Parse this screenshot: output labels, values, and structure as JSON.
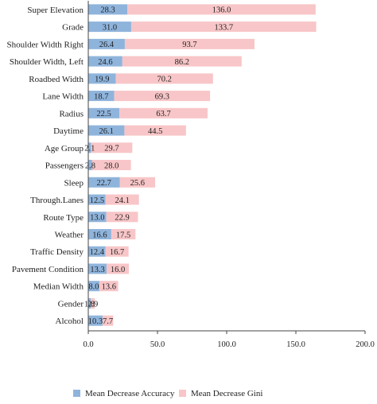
{
  "chart_data": {
    "type": "bar",
    "orientation": "horizontal",
    "stacked": true,
    "categories": [
      "Super Elevation",
      "Grade",
      "Shoulder Width Right",
      "Shoulder Width, Left",
      "Roadbed Width",
      "Lane Width",
      "Radius",
      "Daytime",
      "Age Group",
      "Passengers",
      "Sleep",
      "Through.Lanes",
      "Route Type",
      "Weather",
      "Traffic Density",
      "Pavement Condition",
      "Median Width",
      "Gender",
      "Alcohol"
    ],
    "series": [
      {
        "name": "Mean Decrease Accuracy",
        "color": "#8fb4dc",
        "values": [
          28.3,
          31.0,
          26.4,
          24.6,
          19.9,
          18.7,
          22.5,
          26.1,
          2.1,
          2.8,
          22.7,
          12.5,
          13.0,
          16.6,
          12.4,
          13.3,
          8.0,
          1.8,
          10.3
        ],
        "labels": [
          "28.3",
          "31.0",
          "26.4",
          "24.6",
          "19.9",
          "18.7",
          "22.5",
          "26.1",
          "2.1",
          "2.8",
          "22.7",
          "12.5",
          "13.0",
          "16.6",
          "12.4",
          "13.3",
          "8.0",
          "1.8",
          "10.3"
        ]
      },
      {
        "name": "Mean Decrease Gini",
        "color": "#f8c6c8",
        "values": [
          136.0,
          133.7,
          93.7,
          86.2,
          70.2,
          69.3,
          63.7,
          44.5,
          29.7,
          28.0,
          25.6,
          24.1,
          22.9,
          17.5,
          16.7,
          16.0,
          13.6,
          2.9,
          7.7
        ],
        "labels": [
          "136.0",
          "133.7",
          "93.7",
          "86.2",
          "70.2",
          "69.3",
          "63.7",
          "44.5",
          "29.7",
          "28.0",
          "25.6",
          "24.1",
          "22.9",
          "17.5",
          "16.7",
          "16.0",
          "13.6",
          "2.9",
          "7.7"
        ]
      }
    ],
    "xlim": [
      0,
      200
    ],
    "xticks": [
      "0.0",
      "50.0",
      "100.0",
      "150.0",
      "200.0"
    ],
    "grid": false,
    "legend_position": "bottom"
  }
}
